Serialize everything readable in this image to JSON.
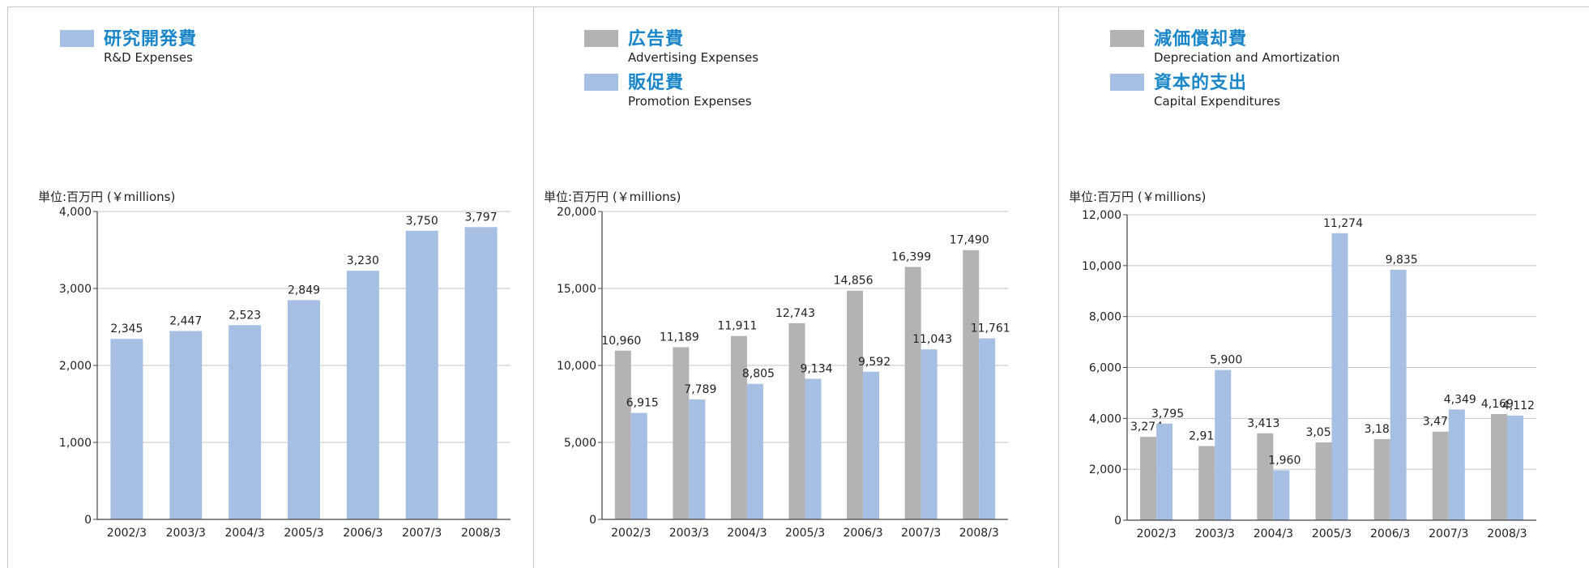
{
  "colors": {
    "blue": "#a6bfe3",
    "gray": "#b3b3b5",
    "title": "#1a86c8",
    "grid": "#c4c4c4",
    "axis": "#444444"
  },
  "panels": [
    {
      "legend": [
        {
          "jp": "研究開発費",
          "en": "R&D Expenses",
          "color": "blue"
        }
      ],
      "unit_label": "単位:百万円 (￥millions)"
    },
    {
      "legend": [
        {
          "jp": "広告費",
          "en": "Advertising Expenses",
          "color": "gray"
        },
        {
          "jp": "販促費",
          "en": "Promotion Expenses",
          "color": "blue"
        }
      ],
      "unit_label": "単位:百万円 (￥millions)"
    },
    {
      "legend": [
        {
          "jp": "減価償却費",
          "en": "Depreciation and Amortization",
          "color": "gray"
        },
        {
          "jp": "資本的支出",
          "en": "Capital Expenditures",
          "color": "blue"
        }
      ],
      "unit_label": "単位:百万円 (￥millions)"
    }
  ],
  "chart_data": [
    {
      "type": "bar",
      "categories": [
        "2002/3",
        "2003/3",
        "2004/3",
        "2005/3",
        "2006/3",
        "2007/3",
        "2008/3"
      ],
      "series": [
        {
          "name": "研究開発費 R&D Expenses",
          "color": "blue",
          "values": [
            2345,
            2447,
            2523,
            2849,
            3230,
            3750,
            3797
          ],
          "labels": [
            "2,345",
            "2,447",
            "2,523",
            "2,849",
            "3,230",
            "3,750",
            "3,797"
          ]
        }
      ],
      "yticks": [
        0,
        1000,
        2000,
        3000,
        4000
      ],
      "ytick_labels": [
        "0",
        "1,000",
        "2,000",
        "3,000",
        "4,000"
      ],
      "ylim": [
        0,
        4000
      ],
      "grid": true
    },
    {
      "type": "bar",
      "categories": [
        "2002/3",
        "2003/3",
        "2004/3",
        "2005/3",
        "2006/3",
        "2007/3",
        "2008/3"
      ],
      "series": [
        {
          "name": "広告費 Advertising Expenses",
          "color": "gray",
          "values": [
            10960,
            11189,
            11911,
            12743,
            14856,
            16399,
            17490
          ],
          "labels": [
            "10,960",
            "11,189",
            "11,911",
            "12,743",
            "14,856",
            "16,399",
            "17,490"
          ]
        },
        {
          "name": "販促費 Promotion Expenses",
          "color": "blue",
          "values": [
            6915,
            7789,
            8805,
            9134,
            9592,
            11043,
            11761
          ],
          "labels": [
            "6,915",
            "7,789",
            "8,805",
            "9,134",
            "9,592",
            "11,043",
            "11,761"
          ]
        }
      ],
      "yticks": [
        0,
        5000,
        10000,
        15000,
        20000
      ],
      "ytick_labels": [
        "0",
        "5,000",
        "10,000",
        "15,000",
        "20,000"
      ],
      "ylim": [
        0,
        20000
      ],
      "grid": true
    },
    {
      "type": "bar",
      "categories": [
        "2002/3",
        "2003/3",
        "2004/3",
        "2005/3",
        "2006/3",
        "2007/3",
        "2008/3"
      ],
      "series": [
        {
          "name": "減価償却費 Depreciation and Amortization",
          "color": "gray",
          "values": [
            3274,
            2913,
            3413,
            3059,
            3186,
            3479,
            4169
          ],
          "labels": [
            "3,274",
            "2,913",
            "3,413",
            "3,059",
            "3,186",
            "3,479",
            "4,169"
          ]
        },
        {
          "name": "資本的支出 Capital Expenditures",
          "color": "blue",
          "values": [
            3795,
            5900,
            1960,
            11274,
            9835,
            4349,
            4112
          ],
          "labels": [
            "3,795",
            "5,900",
            "1,960",
            "11,274",
            "9,835",
            "4,349",
            "4,112"
          ]
        }
      ],
      "yticks": [
        0,
        2000,
        4000,
        6000,
        8000,
        10000,
        12000
      ],
      "ytick_labels": [
        "0",
        "2,000",
        "4,000",
        "6,000",
        "8,000",
        "10,000",
        "12,000"
      ],
      "ylim": [
        0,
        12000
      ],
      "grid": true
    }
  ]
}
